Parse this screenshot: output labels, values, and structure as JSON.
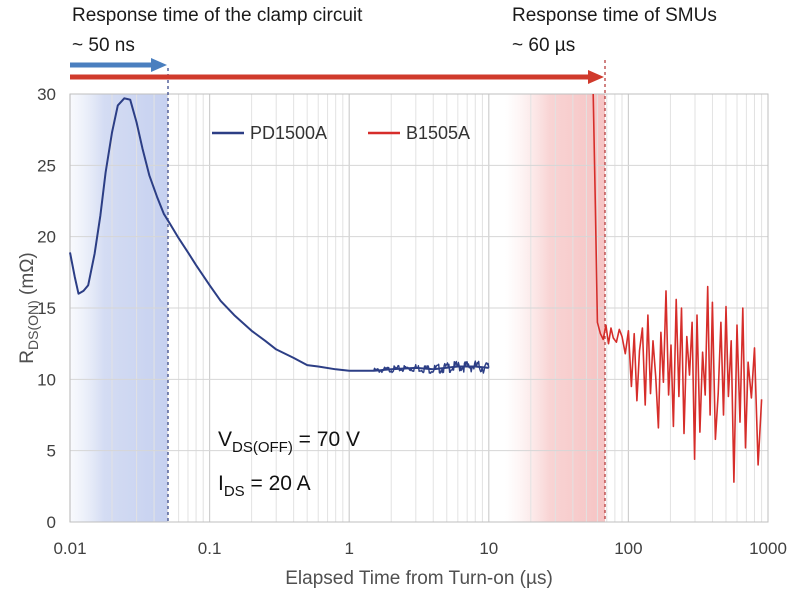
{
  "chart_data": {
    "type": "line",
    "xscale": "log",
    "xlim": [
      0.01,
      1000
    ],
    "ylim": [
      0,
      30
    ],
    "xlabel": "Elapsed Time from Turn-on (µs)",
    "ylabel": {
      "main": "R",
      "sub": "DS(ON)",
      "unit": " (mΩ)"
    },
    "x_ticks": [
      "0.01",
      "0.1",
      "1",
      "10",
      "100",
      "1000"
    ],
    "x_tick_values": [
      0.01,
      0.1,
      1,
      10,
      100,
      1000
    ],
    "y_ticks": [
      "0",
      "5",
      "10",
      "15",
      "20",
      "25",
      "30"
    ],
    "y_tick_values": [
      0,
      5,
      10,
      15,
      20,
      25,
      30
    ],
    "grid": true,
    "legend": {
      "placement": "top",
      "entries": [
        {
          "name": "PD1500A",
          "color": "#2c3e85"
        },
        {
          "name": "B1505A",
          "color": "#d62d2a"
        }
      ]
    },
    "annotations": {
      "clamp": {
        "title": "Response time of the clamp circuit",
        "value": "~ 50 ns",
        "x": 0.05,
        "arrow_color": "#4a7fbf"
      },
      "smu": {
        "title": "Response time of SMUs",
        "value": "~ 60 µs",
        "x": 60,
        "arrow_color": "#d03a2c"
      },
      "conditions": [
        {
          "main": "V",
          "sub": "DS(OFF)",
          "rest": " = 70 V"
        },
        {
          "main": "I",
          "sub": "DS",
          "rest": " = 20 A"
        }
      ]
    },
    "series": [
      {
        "name": "PD1500A",
        "color": "#2c3e85",
        "x": [
          0.01,
          0.0108,
          0.0115,
          0.0125,
          0.0135,
          0.015,
          0.0165,
          0.018,
          0.02,
          0.022,
          0.0245,
          0.027,
          0.03,
          0.033,
          0.037,
          0.042,
          0.047,
          0.052,
          0.06,
          0.07,
          0.08,
          0.1,
          0.12,
          0.15,
          0.2,
          0.25,
          0.3,
          0.4,
          0.5,
          0.6,
          0.8,
          1.0,
          1.5,
          2,
          3,
          4,
          6,
          8,
          10
        ],
        "values": [
          18.9,
          17.2,
          16.0,
          16.2,
          16.6,
          18.8,
          21.5,
          24.5,
          27.3,
          29.2,
          29.7,
          29.6,
          28.0,
          26.2,
          24.3,
          22.8,
          21.6,
          20.9,
          19.9,
          18.9,
          18.0,
          16.6,
          15.5,
          14.5,
          13.4,
          12.7,
          12.1,
          11.5,
          11.0,
          10.9,
          10.7,
          10.6,
          10.6,
          10.7,
          10.8,
          10.7,
          10.9,
          10.9,
          10.8
        ],
        "noise_band": {
          "from": 1.5,
          "to": 10,
          "amplitude": 0.45
        }
      },
      {
        "name": "B1505A",
        "color": "#d62d2a",
        "x": [
          56,
          58,
          60,
          63,
          66,
          69,
          72,
          75,
          78,
          82,
          86,
          90,
          95,
          100,
          105,
          110,
          115,
          120,
          126,
          132,
          138,
          144,
          150,
          157,
          164,
          171,
          178,
          186,
          194,
          202,
          210,
          220,
          230,
          240,
          250,
          262,
          274,
          286,
          298,
          310,
          325,
          340,
          355,
          370,
          385,
          400,
          420,
          440,
          460,
          480,
          500,
          520,
          545,
          570,
          600,
          630,
          660,
          690,
          720,
          760,
          800,
          850,
          900
        ],
        "values": [
          30,
          22,
          14,
          13.2,
          12.8,
          13.8,
          12.5,
          13.6,
          12.9,
          12.6,
          13.5,
          13.0,
          11.8,
          13.4,
          9.5,
          13.2,
          8.5,
          12.0,
          13.6,
          8.2,
          14.5,
          9.0,
          12.7,
          10.2,
          6.6,
          13.3,
          9.8,
          16.2,
          8.9,
          12.4,
          6.7,
          15.6,
          8.8,
          15.0,
          6.2,
          13.0,
          10.3,
          14.0,
          4.4,
          14.5,
          6.3,
          11.9,
          8.9,
          16.5,
          7.5,
          15.4,
          5.8,
          9.0,
          14.0,
          7.5,
          15.1,
          8.8,
          12.7,
          2.8,
          13.8,
          7.0,
          15.0,
          5.2,
          11.2,
          8.7,
          12.2,
          4.0,
          8.6
        ]
      }
    ]
  }
}
